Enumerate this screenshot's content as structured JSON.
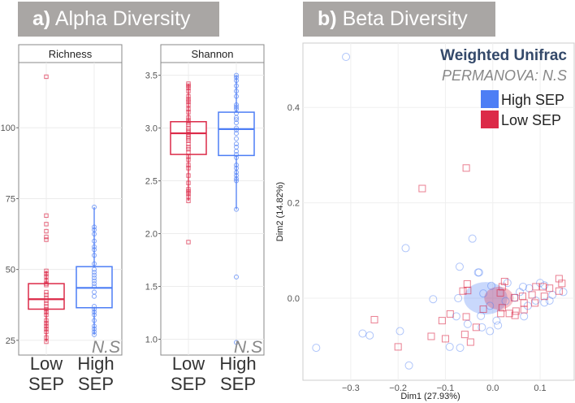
{
  "headers": {
    "alpha": {
      "letter": "a)",
      "title": "Alpha Diversity"
    },
    "beta": {
      "letter": "b)",
      "title": "Beta Diversity"
    }
  },
  "colors": {
    "low": "#dc2a48",
    "high": "#4d7ef5",
    "header_bg": "#a9a6a4",
    "title": "#34496a"
  },
  "chart_data": [
    {
      "type": "box",
      "title": "Richness",
      "categories": [
        "Low SEP",
        "High SEP"
      ],
      "category_lines": [
        [
          "Low",
          "SEP"
        ],
        [
          "High",
          "SEP"
        ]
      ],
      "ylim": [
        19.8,
        123
      ],
      "yticks": [
        25,
        50,
        75,
        100
      ],
      "annotation": "N.S",
      "series": [
        {
          "name": "Low SEP",
          "q1": 36,
          "median": 39.5,
          "q3": 45,
          "whisker_low": 24.5,
          "whisker_high": 49.5,
          "points": [
            118,
            69,
            66,
            63.5,
            61.5,
            60.5,
            49.5,
            48.5,
            47.5,
            46,
            45,
            44.5,
            42,
            41,
            40,
            39,
            38,
            37,
            36,
            35,
            34,
            32,
            31,
            30,
            29,
            28,
            26,
            24.5
          ]
        },
        {
          "name": "High SEP",
          "q1": 36.5,
          "median": 43.5,
          "q3": 51,
          "whisker_low": 27,
          "whisker_high": 72,
          "points": [
            72,
            65,
            64,
            62.5,
            60,
            58,
            57,
            55,
            52,
            50,
            49,
            48,
            47,
            46,
            45,
            44,
            42,
            40.5,
            37,
            36,
            35,
            34,
            32,
            30,
            29,
            28,
            27
          ]
        }
      ]
    },
    {
      "type": "box",
      "title": "Shannon",
      "categories": [
        "Low SEP",
        "High SEP"
      ],
      "category_lines": [
        [
          "Low",
          "SEP"
        ],
        [
          "High",
          "SEP"
        ]
      ],
      "ylim": [
        0.85,
        3.62
      ],
      "yticks": [
        "1.0",
        "1.5",
        "2.0",
        "2.5",
        "3.0",
        "3.5"
      ],
      "annotation": "N.S",
      "series": [
        {
          "name": "Low SEP",
          "q1": 2.75,
          "median": 2.95,
          "q3": 3.06,
          "whisker_low": 2.31,
          "whisker_high": 3.42,
          "points": [
            3.42,
            3.4,
            3.38,
            3.35,
            3.3,
            3.27,
            3.25,
            3.22,
            3.18,
            3.15,
            3.1,
            3.07,
            3.05,
            3.03,
            3.0,
            2.98,
            2.96,
            2.94,
            2.92,
            2.9,
            2.88,
            2.85,
            2.82,
            2.8,
            2.77,
            2.73,
            2.7,
            2.65,
            2.62,
            2.55,
            2.48,
            2.42,
            2.4,
            2.38,
            2.35,
            2.31,
            1.92
          ]
        },
        {
          "name": "High SEP",
          "q1": 2.74,
          "median": 2.99,
          "q3": 3.15,
          "whisker_low": 2.23,
          "whisker_high": 3.5,
          "points": [
            3.5,
            3.48,
            3.45,
            3.4,
            3.35,
            3.3,
            3.22,
            3.2,
            3.18,
            3.14,
            3.1,
            3.08,
            3.05,
            3.0,
            2.98,
            2.95,
            2.9,
            2.85,
            2.82,
            2.78,
            2.75,
            2.72,
            2.65,
            2.62,
            2.58,
            2.55,
            2.52,
            2.5,
            2.23,
            1.59,
            0.97
          ]
        }
      ]
    },
    {
      "type": "scatter",
      "title": "Weighted Unifrac",
      "subtitle": "PERMANOVA: N.S",
      "xlabel": "Dim1 (27.93%)",
      "ylabel": "Dim2 (14.82%)",
      "xlim": [
        -0.401,
        0.172
      ],
      "ylim": [
        -0.172,
        0.535
      ],
      "xticks": [
        "-0.3",
        "-0.2",
        "-0.1",
        "0.0",
        "0.1"
      ],
      "yticks": [
        "0.0",
        "0.2",
        "0.4"
      ],
      "legend": [
        "High SEP",
        "Low SEP"
      ],
      "legend_position": "top-right",
      "series": [
        {
          "name": "High SEP",
          "marker": "circle",
          "ellipse": {
            "cx": -0.015,
            "cy": 0.0,
            "rx": 0.046,
            "ry": 0.034
          },
          "points": [
            [
              -0.31,
              0.506
            ],
            [
              -0.043,
              0.125
            ],
            [
              -0.184,
              0.105
            ],
            [
              -0.07,
              0.066
            ],
            [
              -0.031,
              0.054
            ],
            [
              -0.029,
              0.054
            ],
            [
              -0.126,
              -0.002
            ],
            [
              -0.073,
              0.0
            ],
            [
              -0.077,
              -0.038
            ],
            [
              -0.053,
              -0.054
            ],
            [
              -0.025,
              -0.037
            ],
            [
              -0.023,
              -0.061
            ],
            [
              -0.006,
              -0.069
            ],
            [
              0.008,
              -0.047
            ],
            [
              0.011,
              -0.057
            ],
            [
              -0.091,
              -0.102
            ],
            [
              -0.069,
              -0.104
            ],
            [
              -0.177,
              -0.141
            ],
            [
              -0.196,
              -0.069
            ],
            [
              -0.275,
              -0.074
            ],
            [
              -0.26,
              -0.078
            ],
            [
              -0.373,
              -0.104
            ],
            [
              -0.003,
              0.026
            ],
            [
              -0.02,
              0.01
            ],
            [
              0.031,
              0.032
            ],
            [
              0.027,
              -0.006
            ],
            [
              -0.006,
              -0.016
            ],
            [
              0.064,
              0.024
            ],
            [
              0.077,
              0.021
            ],
            [
              0.1,
              0.032
            ],
            [
              0.109,
              0.027
            ],
            [
              0.126,
              0.007
            ],
            [
              0.149,
              0.013
            ],
            [
              0.12,
              -0.005
            ],
            [
              0.109,
              -0.009
            ],
            [
              0.066,
              -0.038
            ],
            [
              0.074,
              -0.016
            ],
            [
              0.046,
              0.001
            ],
            [
              0.091,
              -0.005
            ],
            [
              0.057,
              0.013
            ]
          ]
        },
        {
          "name": "Low SEP",
          "marker": "square",
          "ellipse": {
            "cx": 0.013,
            "cy": 0.0,
            "rx": 0.031,
            "ry": 0.024
          },
          "points": [
            [
              -0.056,
              0.273
            ],
            [
              -0.149,
              0.23
            ],
            [
              -0.25,
              -0.045
            ],
            [
              -0.2,
              -0.102
            ],
            [
              -0.13,
              -0.08
            ],
            [
              -0.107,
              -0.047
            ],
            [
              -0.09,
              -0.033
            ],
            [
              -0.1,
              -0.085
            ],
            [
              -0.059,
              -0.076
            ],
            [
              -0.047,
              -0.092
            ],
            [
              -0.035,
              -0.061
            ],
            [
              -0.056,
              -0.039
            ],
            [
              -0.063,
              0.015
            ],
            [
              -0.054,
              0.03
            ],
            [
              -0.053,
              0.016
            ],
            [
              -0.02,
              -0.023
            ],
            [
              0.016,
              0.011
            ],
            [
              0.025,
              0.035
            ],
            [
              0.02,
              0.024
            ],
            [
              0.017,
              -0.032
            ],
            [
              0.02,
              -0.02
            ],
            [
              0.035,
              -0.032
            ],
            [
              0.049,
              -0.027
            ],
            [
              0.047,
              -0.036
            ],
            [
              0.066,
              -0.024
            ],
            [
              0.046,
              0.001
            ],
            [
              0.063,
              0.004
            ],
            [
              0.066,
              -0.01
            ],
            [
              0.083,
              0.007
            ],
            [
              0.089,
              -0.01
            ],
            [
              0.091,
              0.024
            ],
            [
              0.109,
              0.004
            ],
            [
              0.106,
              0.024
            ],
            [
              0.12,
              0.021
            ],
            [
              0.14,
              0.041
            ],
            [
              0.146,
              0.031
            ],
            [
              0.14,
              0.015
            ]
          ]
        }
      ]
    }
  ]
}
